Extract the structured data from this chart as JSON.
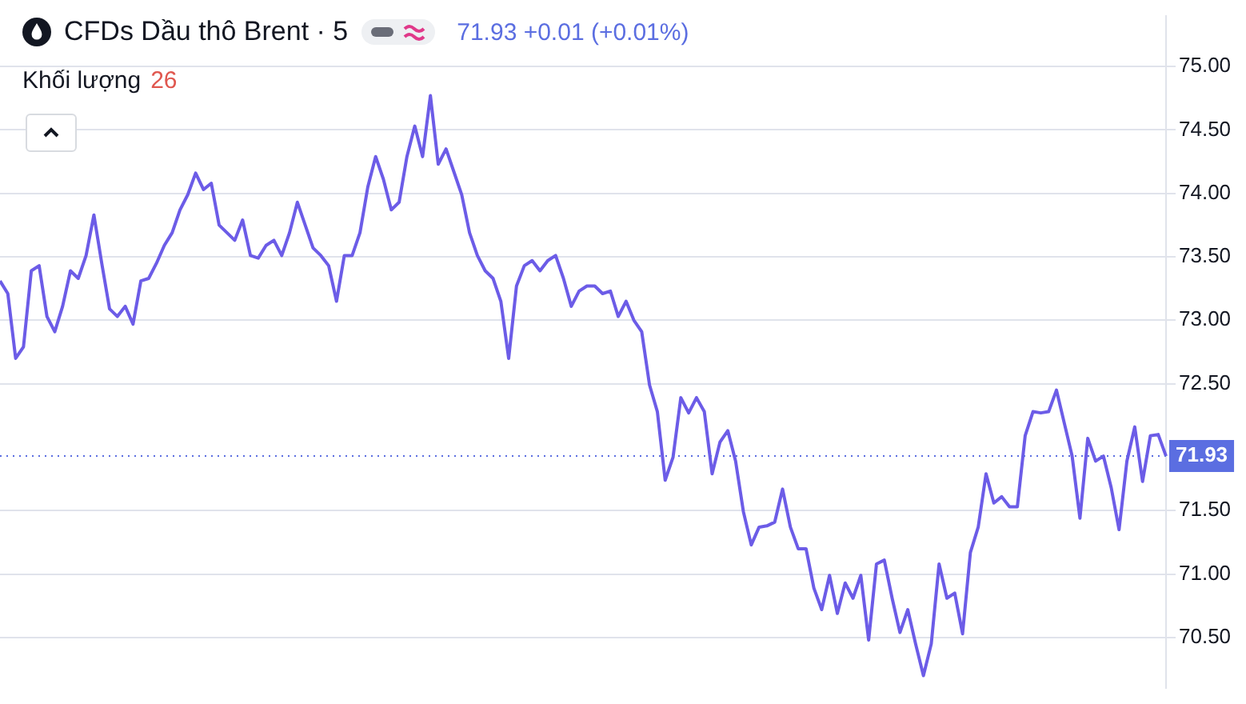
{
  "chart_data": {
    "type": "line",
    "title": "CFDs Dầu thô Brent · 5",
    "annotations": [
      "71.93 +0.01 (+0.01%)",
      "Khối lượng 26"
    ],
    "categories": [
      null,
      null,
      null,
      null,
      null,
      null,
      null,
      null,
      null,
      null,
      null,
      null,
      null,
      null,
      null,
      null,
      null,
      null,
      null,
      null,
      null,
      null,
      null,
      null,
      null,
      null,
      null,
      null,
      null,
      null,
      null,
      null,
      null,
      null,
      null,
      null,
      null,
      null,
      null,
      null,
      null,
      null,
      null,
      null,
      null,
      null,
      null,
      null,
      null,
      null,
      null,
      null,
      null,
      null,
      null,
      null,
      null,
      null,
      null,
      null,
      null,
      null,
      null,
      null,
      null,
      null,
      null,
      null,
      null,
      null,
      null,
      null,
      null,
      null,
      null,
      null,
      null,
      null,
      null,
      null,
      null,
      null,
      null,
      null,
      null,
      null,
      null,
      null,
      null,
      null,
      null,
      null,
      null,
      null,
      null,
      null,
      null,
      null,
      null,
      null,
      null,
      null,
      null,
      null,
      null,
      null,
      null,
      null,
      null,
      null,
      null,
      null,
      null,
      null,
      null,
      null,
      null,
      null,
      null,
      null,
      null,
      null,
      null,
      null,
      null,
      null,
      null,
      null,
      null,
      null,
      null,
      null,
      null,
      null,
      null,
      null,
      null,
      null,
      null,
      null,
      null,
      null,
      null,
      null,
      null,
      null,
      null,
      null,
      null,
      null
    ],
    "series": [
      {
        "color": "#6c5ce7",
        "values": [
          73.31,
          73.21,
          72.7,
          72.79,
          73.39,
          73.43,
          73.03,
          72.91,
          73.11,
          73.39,
          73.33,
          73.51,
          73.83,
          73.45,
          73.09,
          73.03,
          73.11,
          72.97,
          73.31,
          73.33,
          73.45,
          73.59,
          73.69,
          73.87,
          73.99,
          74.16,
          74.03,
          74.08,
          73.75,
          73.69,
          73.63,
          73.79,
          73.51,
          73.49,
          73.59,
          73.63,
          73.51,
          73.69,
          73.93,
          73.75,
          73.57,
          73.51,
          73.43,
          73.15,
          73.51,
          73.51,
          73.69,
          74.05,
          74.29,
          74.11,
          73.87,
          73.93,
          74.29,
          74.53,
          74.29,
          74.77,
          74.23,
          74.35,
          74.17,
          73.99,
          73.69,
          73.51,
          73.39,
          73.33,
          73.15,
          72.7,
          73.27,
          73.43,
          73.47,
          73.39,
          73.47,
          73.51,
          73.33,
          73.11,
          73.23,
          73.27,
          73.27,
          73.21,
          73.23,
          73.03,
          73.15,
          73.0,
          72.91,
          72.49,
          72.28,
          71.74,
          71.92,
          72.39,
          72.27,
          72.39,
          72.28,
          71.79,
          72.04,
          72.13,
          71.89,
          71.49,
          71.23,
          71.37,
          71.38,
          71.41,
          71.67,
          71.37,
          71.2,
          71.2,
          70.89,
          70.72,
          70.99,
          70.69,
          70.93,
          70.81,
          70.99,
          70.48,
          71.08,
          71.11,
          70.81,
          70.54,
          70.72,
          70.45,
          70.2,
          70.45,
          71.08,
          70.81,
          70.85,
          70.53,
          71.17,
          71.37,
          71.79,
          71.56,
          71.61,
          71.53,
          71.53,
          72.09,
          72.28,
          72.27,
          72.28,
          72.45,
          72.19,
          71.93,
          71.44,
          72.07,
          71.89,
          71.93,
          71.68,
          71.35,
          71.89,
          72.16,
          71.73,
          72.09,
          72.1,
          71.93
        ]
      }
    ],
    "ylim": [
      70.1,
      75.4
    ],
    "yticks": [
      {
        "value": 70.5,
        "label": "70.50"
      },
      {
        "value": 71,
        "label": "71.00"
      },
      {
        "value": 71.5,
        "label": "71.50"
      },
      {
        "value": 72.5,
        "label": "72.50"
      },
      {
        "value": 73,
        "label": "73.00"
      },
      {
        "value": 73.5,
        "label": "73.50"
      },
      {
        "value": 74,
        "label": "74.00"
      },
      {
        "value": 74.5,
        "label": "74.50"
      },
      {
        "value": 75,
        "label": "75.00"
      }
    ],
    "ref_lines": [
      {
        "axis": "y",
        "value": 71.93,
        "label": "71.93",
        "color": "#5b6ee1",
        "line_style": "dotted"
      }
    ],
    "grid": "y",
    "tick_labels": "y",
    "marker": "none",
    "line_style": "solid",
    "legend": false
  }
}
